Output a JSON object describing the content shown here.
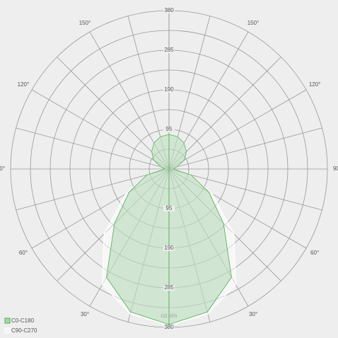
{
  "chart_data": {
    "type": "polar",
    "unit": "cd.klm",
    "angles": [
      0,
      15,
      30,
      45,
      60,
      75,
      90,
      105,
      120,
      135,
      150,
      165,
      180
    ],
    "series": [
      {
        "name": "C0-C180",
        "color": "#4caf50",
        "values": [
          373,
          355,
          300,
          185,
          110,
          55,
          10,
          20,
          42,
          59,
          72,
          80,
          83
        ]
      },
      {
        "name": "C90-C270",
        "color": "#ffffff",
        "values": [
          375,
          360,
          320,
          220,
          120,
          55,
          10,
          20,
          42,
          59,
          72,
          80,
          83
        ]
      }
    ],
    "rlim": [
      0,
      380
    ],
    "rticks": [
      95,
      190,
      285,
      380
    ],
    "rgrid": [
      47.5,
      95,
      142.5,
      190,
      237.5,
      285,
      332.5,
      380
    ],
    "agrid": [
      0,
      15,
      30,
      45,
      60,
      75,
      90,
      105,
      120,
      135,
      150,
      165,
      180
    ],
    "aticks": [
      {
        "value": 30,
        "label": "30°"
      },
      {
        "value": 60,
        "label": "60°"
      },
      {
        "value": 90,
        "label": "90°"
      },
      {
        "value": 120,
        "label": "120°"
      },
      {
        "value": 150,
        "label": "150°"
      }
    ]
  }
}
